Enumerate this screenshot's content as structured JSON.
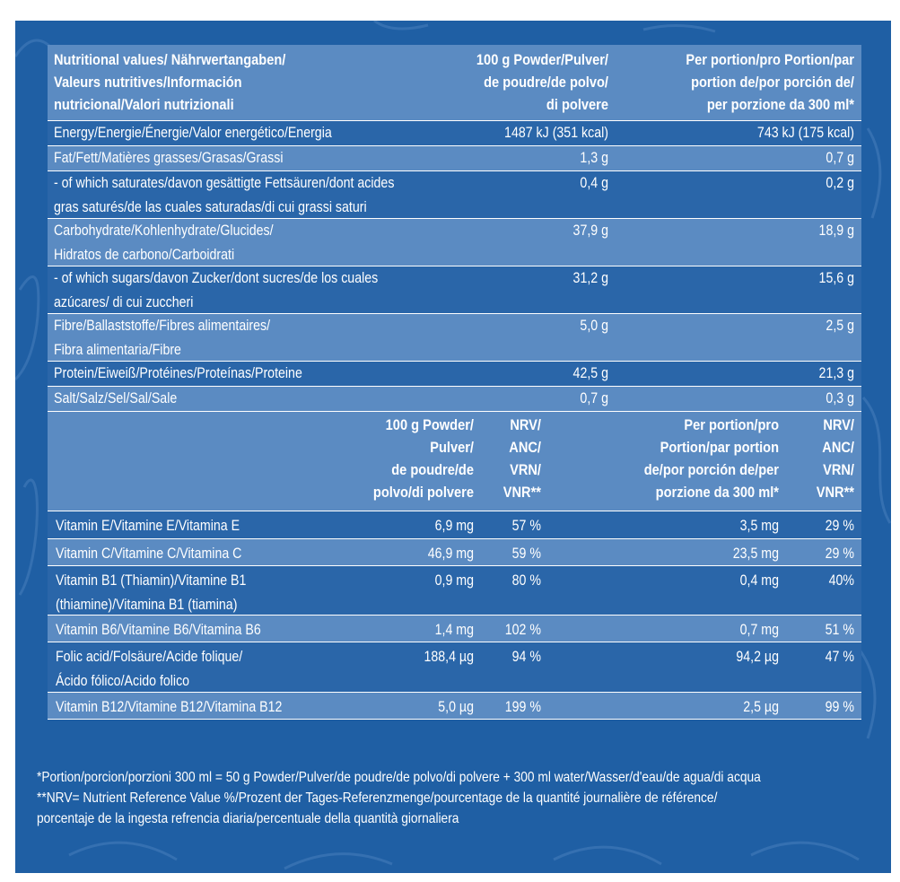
{
  "header1": {
    "label": "Nutritional values/ Nährwertangaben/\nValeurs nutritives/Información\nnutricional/Valori nutrizionali",
    "per100": "100 g Powder/Pulver/\nde poudre/de polvo/\ndi polvere",
    "perPortion": "Per portion/pro Portion/par\nportion de/por porción de/\nper porzione da  300 ml*"
  },
  "nutrients": [
    {
      "name": "Energy/Energie/Énergie/Valor energético/Energia",
      "per100": "1487 kJ (351 kcal)",
      "perPortion": "743 kJ (175 kcal)"
    },
    {
      "name": "Fat/Fett/Matières grasses/Grasas/Grassi",
      "per100": "1,3 g",
      "perPortion": "0,7 g"
    },
    {
      "name": "- of which saturates/davon gesättigte Fettsäuren/dont acides\ngras saturés/de las cuales saturadas/di cui grassi saturi",
      "per100": "0,4 g",
      "perPortion": "0,2 g"
    },
    {
      "name": "Carbohydrate/Kohlenhydrate/Glucides/\nHidratos de carbono/Carboidrati",
      "per100": "37,9 g",
      "perPortion": "18,9 g"
    },
    {
      "name": "- of which sugars/davon Zucker/dont sucres/de los cuales\nazúcares/ di cui zuccheri",
      "per100": "31,2 g",
      "perPortion": "15,6 g"
    },
    {
      "name": "Fibre/Ballaststoffe/Fibres alimentaires/\nFibra alimentaria/Fibre",
      "per100": "5,0 g",
      "perPortion": "2,5 g"
    },
    {
      "name": "Protein/Eiweiß/Protéines/Proteínas/Proteine",
      "per100": "42,5 g",
      "perPortion": "21,3 g"
    },
    {
      "name": "Salt/Salz/Sel/Sal/Sale",
      "per100": "0,7 g",
      "perPortion": "0,3 g"
    }
  ],
  "header2": {
    "per100": "100 g Powder/\nPulver/\nde poudre/de\npolvo/di polvere",
    "nrv1": "NRV/\nANC/\nVRN/\nVNR**",
    "perPortion": "Per portion/pro\nPortion/par portion\nde/por porción de/per\nporzione da  300 ml*",
    "nrv2": "NRV/\nANC/\nVRN/\nVNR**"
  },
  "vitamins": [
    {
      "name": "Vitamin E/Vitamine E/Vitamina E",
      "per100": "6,9 mg",
      "nrv100": "57 %",
      "perPortion": "3,5 mg",
      "nrvPortion": "29 %"
    },
    {
      "name": "Vitamin C/Vitamine C/Vitamina C",
      "per100": "46,9 mg",
      "nrv100": "59 %",
      "perPortion": "23,5 mg",
      "nrvPortion": "29 %"
    },
    {
      "name": "Vitamin B1 (Thiamin)/Vitamine B1\n(thiamine)/Vitamina B1 (tiamina)",
      "per100": "0,9 mg",
      "nrv100": "80 %",
      "perPortion": "0,4 mg",
      "nrvPortion": "40%"
    },
    {
      "name": "Vitamin B6/Vitamine B6/Vitamina B6",
      "per100": "1,4 mg",
      "nrv100": "102 %",
      "perPortion": "0,7 mg",
      "nrvPortion": "51 %"
    },
    {
      "name": "Folic acid/Folsäure/Acide folique/\nÁcido fólico/Acido folico",
      "per100": "188,4 µg",
      "nrv100": "94 %",
      "perPortion": "94,2 µg",
      "nrvPortion": "47 %"
    },
    {
      "name": "Vitamin B12/Vitamine B12/Vitamina B12",
      "per100": "5,0 µg",
      "nrv100": "199 %",
      "perPortion": "2,5 µg",
      "nrvPortion": "99 %"
    }
  ],
  "footnotes": {
    "portion": "*Portion/porcion/porzioni 300 ml = 50 g Powder/Pulver/de poudre/de polvo/di polvere + 300 ml water/Wasser/d'eau/de agua/di acqua",
    "nrv_line1": "**NRV= Nutrient Reference Value %/Prozent der Tages-Referenzmenge/pourcentage de la quantité journalière de référence/",
    "nrv_line2": "porcentaje de la ingesta refrencia diaria/percentuale della quantità giornaliera"
  },
  "colors": {
    "background": "#1f5fa4",
    "row_dark": "#2a66a9",
    "row_light": "#5b8bc2",
    "text": "#ffffff"
  }
}
